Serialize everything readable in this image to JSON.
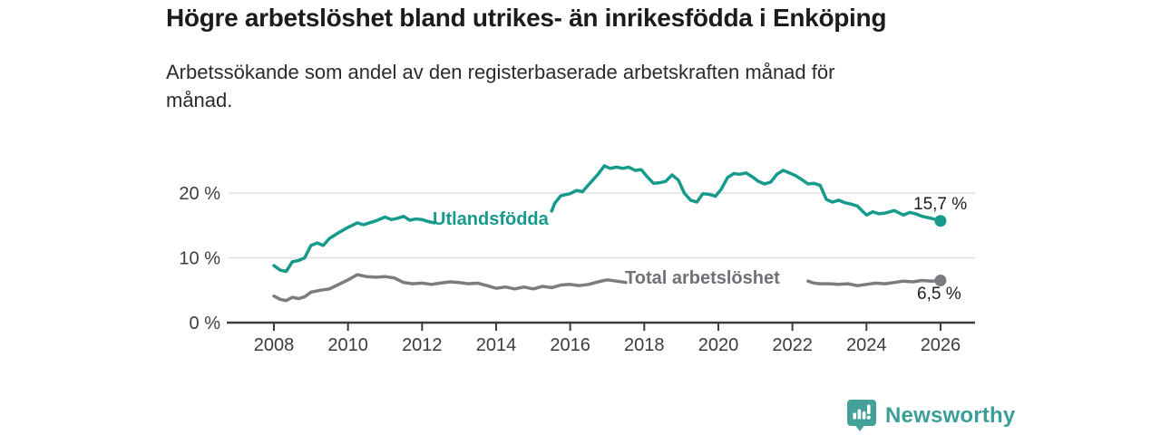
{
  "header": {
    "title": "Högre arbetslöshet bland utrikes- än inrikesfödda i Enköping",
    "subtitle": "Arbetssökande som andel av den registerbaserade arbetskraften månad för\nmånad."
  },
  "chart_data": {
    "type": "line",
    "title": "Högre arbetslöshet bland utrikes- än inrikesfödda i Enköping",
    "subtitle": "Arbetssökande som andel av den registerbaserade arbetskraften månad för månad.",
    "unit": "%",
    "xlabel": "",
    "ylabel": "",
    "xlim": [
      2007,
      2027
    ],
    "ylim": [
      0,
      26
    ],
    "grid": "horizontal-only",
    "legend_position": "inline-labels",
    "x_ticks": [
      "2008",
      "2010",
      "2012",
      "2014",
      "2016",
      "2018",
      "2020",
      "2022",
      "2024",
      "2026"
    ],
    "y_ticks": [
      {
        "value": 0,
        "label": "0 %"
      },
      {
        "value": 10,
        "label": "10 %"
      },
      {
        "value": 20,
        "label": "20 %"
      }
    ],
    "axis_color": "#3c3c3c",
    "grid_color": "#dcdcdc",
    "tick_label_color": "#3c3c3c",
    "series": [
      {
        "name": "Utlandsfödda",
        "color": "#169a8c",
        "label_color": "#169a8c",
        "end_value": 15.7,
        "end_label": "15,7 %",
        "points": [
          [
            2008.0,
            8.8
          ],
          [
            2008.17,
            8.1
          ],
          [
            2008.33,
            7.9
          ],
          [
            2008.5,
            9.4
          ],
          [
            2008.67,
            9.6
          ],
          [
            2008.83,
            10.0
          ],
          [
            2009.0,
            11.9
          ],
          [
            2009.17,
            12.3
          ],
          [
            2009.33,
            11.9
          ],
          [
            2009.5,
            13.0
          ],
          [
            2009.75,
            13.9
          ],
          [
            2010.0,
            14.7
          ],
          [
            2010.25,
            15.4
          ],
          [
            2010.42,
            15.1
          ],
          [
            2010.58,
            15.4
          ],
          [
            2010.75,
            15.7
          ],
          [
            2011.0,
            16.3
          ],
          [
            2011.17,
            15.9
          ],
          [
            2011.33,
            16.1
          ],
          [
            2011.5,
            16.4
          ],
          [
            2011.67,
            15.8
          ],
          [
            2011.83,
            16.0
          ],
          [
            2012.0,
            15.9
          ],
          [
            2012.17,
            15.6
          ],
          [
            2012.33,
            15.4
          ],
          [
            2012.5,
            null
          ],
          [
            2015.5,
            17.2
          ],
          [
            2015.58,
            18.4
          ],
          [
            2015.75,
            19.6
          ],
          [
            2016.0,
            19.9
          ],
          [
            2016.17,
            20.4
          ],
          [
            2016.33,
            20.2
          ],
          [
            2016.5,
            21.3
          ],
          [
            2016.75,
            22.9
          ],
          [
            2016.92,
            24.2
          ],
          [
            2017.08,
            23.8
          ],
          [
            2017.25,
            24.0
          ],
          [
            2017.42,
            23.8
          ],
          [
            2017.58,
            24.0
          ],
          [
            2017.75,
            23.5
          ],
          [
            2017.92,
            23.6
          ],
          [
            2018.08,
            22.5
          ],
          [
            2018.25,
            21.5
          ],
          [
            2018.42,
            21.6
          ],
          [
            2018.58,
            21.8
          ],
          [
            2018.75,
            22.8
          ],
          [
            2018.92,
            22.0
          ],
          [
            2019.08,
            20.0
          ],
          [
            2019.25,
            18.9
          ],
          [
            2019.42,
            18.6
          ],
          [
            2019.58,
            19.9
          ],
          [
            2019.75,
            19.8
          ],
          [
            2019.92,
            19.5
          ],
          [
            2020.08,
            20.6
          ],
          [
            2020.25,
            22.4
          ],
          [
            2020.42,
            23.0
          ],
          [
            2020.58,
            22.9
          ],
          [
            2020.75,
            23.1
          ],
          [
            2020.92,
            22.5
          ],
          [
            2021.08,
            21.8
          ],
          [
            2021.25,
            21.4
          ],
          [
            2021.42,
            21.7
          ],
          [
            2021.58,
            22.9
          ],
          [
            2021.75,
            23.5
          ],
          [
            2021.92,
            23.1
          ],
          [
            2022.08,
            22.7
          ],
          [
            2022.25,
            22.1
          ],
          [
            2022.42,
            21.4
          ],
          [
            2022.58,
            21.5
          ],
          [
            2022.75,
            21.2
          ],
          [
            2022.92,
            19.0
          ],
          [
            2023.08,
            18.6
          ],
          [
            2023.25,
            18.9
          ],
          [
            2023.42,
            18.5
          ],
          [
            2023.58,
            18.3
          ],
          [
            2023.75,
            18.0
          ],
          [
            2024.0,
            16.6
          ],
          [
            2024.17,
            17.1
          ],
          [
            2024.33,
            16.8
          ],
          [
            2024.5,
            16.9
          ],
          [
            2024.75,
            17.3
          ],
          [
            2025.0,
            16.6
          ],
          [
            2025.17,
            17.0
          ],
          [
            2025.33,
            16.8
          ],
          [
            2025.5,
            16.4
          ],
          [
            2025.75,
            16.1
          ],
          [
            2026.0,
            15.7
          ]
        ]
      },
      {
        "name": "Total arbetslöshet",
        "color": "#7b7b80",
        "label_color": "#707076",
        "end_value": 6.5,
        "end_label": "6,5 %",
        "points": [
          [
            2008.0,
            4.1
          ],
          [
            2008.17,
            3.6
          ],
          [
            2008.33,
            3.4
          ],
          [
            2008.5,
            3.9
          ],
          [
            2008.67,
            3.7
          ],
          [
            2008.83,
            4.0
          ],
          [
            2009.0,
            4.7
          ],
          [
            2009.25,
            5.0
          ],
          [
            2009.5,
            5.2
          ],
          [
            2009.75,
            5.9
          ],
          [
            2010.0,
            6.6
          ],
          [
            2010.25,
            7.4
          ],
          [
            2010.5,
            7.1
          ],
          [
            2010.75,
            7.0
          ],
          [
            2011.0,
            7.1
          ],
          [
            2011.25,
            6.9
          ],
          [
            2011.5,
            6.2
          ],
          [
            2011.75,
            6.0
          ],
          [
            2012.0,
            6.1
          ],
          [
            2012.25,
            5.9
          ],
          [
            2012.5,
            6.1
          ],
          [
            2012.75,
            6.3
          ],
          [
            2013.0,
            6.2
          ],
          [
            2013.25,
            6.0
          ],
          [
            2013.5,
            6.1
          ],
          [
            2013.75,
            5.7
          ],
          [
            2014.0,
            5.3
          ],
          [
            2014.25,
            5.5
          ],
          [
            2014.5,
            5.2
          ],
          [
            2014.75,
            5.5
          ],
          [
            2015.0,
            5.2
          ],
          [
            2015.25,
            5.6
          ],
          [
            2015.5,
            5.4
          ],
          [
            2015.75,
            5.8
          ],
          [
            2016.0,
            5.9
          ],
          [
            2016.25,
            5.7
          ],
          [
            2016.5,
            5.9
          ],
          [
            2016.75,
            6.3
          ],
          [
            2017.0,
            6.6
          ],
          [
            2017.25,
            6.4
          ],
          [
            2017.5,
            6.2
          ],
          [
            2017.67,
            null
          ],
          [
            2022.42,
            6.4
          ],
          [
            2022.58,
            6.1
          ],
          [
            2022.75,
            6.0
          ],
          [
            2023.0,
            6.0
          ],
          [
            2023.25,
            5.9
          ],
          [
            2023.5,
            6.0
          ],
          [
            2023.75,
            5.7
          ],
          [
            2024.0,
            5.9
          ],
          [
            2024.25,
            6.1
          ],
          [
            2024.5,
            6.0
          ],
          [
            2024.75,
            6.2
          ],
          [
            2025.0,
            6.4
          ],
          [
            2025.25,
            6.3
          ],
          [
            2025.5,
            6.5
          ],
          [
            2025.75,
            6.4
          ],
          [
            2026.0,
            6.5
          ]
        ]
      }
    ]
  },
  "footer": {
    "brand": "Newsworthy",
    "brand_color": "#3b9e97",
    "logo_icon": "newsworthy-speech-bubble-bar-chart-icon",
    "logo_fill": "#44a19a"
  }
}
